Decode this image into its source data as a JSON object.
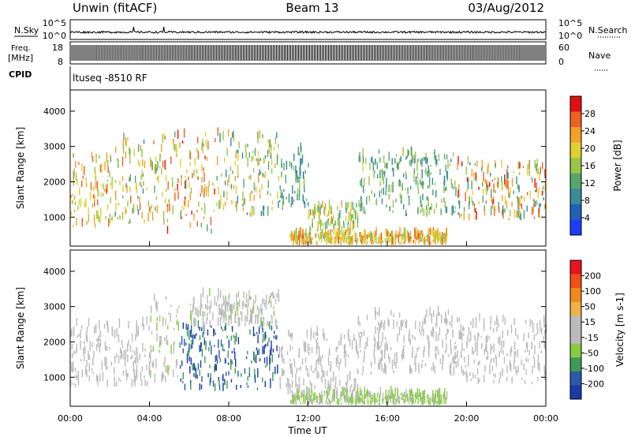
{
  "header": {
    "title_left": "Unwin (fitACF)",
    "title_center": "Beam 13",
    "title_right": "03/Aug/2012"
  },
  "strips": {
    "nsky": {
      "label": "N.Sky",
      "right_label": "N.Search",
      "left_ticks": [
        "10^5",
        "10^0"
      ],
      "right_ticks": [
        "10^5",
        "10^0"
      ]
    },
    "freq": {
      "label_line1": "Freq.",
      "label_line2": "[MHz]",
      "right_label": "Nave",
      "left_ticks": [
        "18",
        "8"
      ],
      "right_ticks": [
        "60",
        "0"
      ]
    },
    "cpid": {
      "label": "CPID",
      "value": "ltuseq -8510 RF"
    }
  },
  "time_axis": {
    "label": "Time UT",
    "ticks": [
      "00:00",
      "04:00",
      "08:00",
      "12:00",
      "16:00",
      "20:00",
      "00:00"
    ]
  },
  "chart_data": [
    {
      "type": "heatmap",
      "title": "",
      "xlabel": "Time UT",
      "ylabel": "Slant Range [km]",
      "xlim_hours": [
        0,
        24
      ],
      "ylim": [
        180,
        4600
      ],
      "y_ticks": [
        1000,
        2000,
        3000,
        4000
      ],
      "colorbar": {
        "label": "Power [dB]",
        "ticks": [
          "28",
          "24",
          "20",
          "16",
          "12",
          "8",
          "4"
        ],
        "range": [
          0,
          32
        ]
      },
      "regions": [
        {
          "t_start_h": 0.0,
          "t_end_h": 2.0,
          "r_min_km": 700,
          "r_max_km": 2700,
          "value_range": [
            14,
            28
          ]
        },
        {
          "t_start_h": 2.0,
          "t_end_h": 4.5,
          "r_min_km": 800,
          "r_max_km": 3200,
          "value_range": [
            10,
            26
          ]
        },
        {
          "t_start_h": 4.5,
          "t_end_h": 7.5,
          "r_min_km": 500,
          "r_max_km": 3300,
          "value_range": [
            12,
            30
          ]
        },
        {
          "t_start_h": 7.5,
          "t_end_h": 10.5,
          "r_min_km": 1000,
          "r_max_km": 3300,
          "value_range": [
            8,
            24
          ]
        },
        {
          "t_start_h": 10.5,
          "t_end_h": 12.0,
          "r_min_km": 1200,
          "r_max_km": 2900,
          "value_range": [
            6,
            16
          ]
        },
        {
          "t_start_h": 12.0,
          "t_end_h": 14.5,
          "r_min_km": 500,
          "r_max_km": 1300,
          "value_range": [
            10,
            24
          ]
        },
        {
          "t_start_h": 11.0,
          "t_end_h": 19.0,
          "r_min_km": 200,
          "r_max_km": 500,
          "value_range": [
            14,
            28
          ]
        },
        {
          "t_start_h": 14.5,
          "t_end_h": 19.5,
          "r_min_km": 1000,
          "r_max_km": 2800,
          "value_range": [
            8,
            18
          ]
        },
        {
          "t_start_h": 19.5,
          "t_end_h": 24.0,
          "r_min_km": 900,
          "r_max_km": 2500,
          "value_range": [
            8,
            30
          ]
        }
      ]
    },
    {
      "type": "heatmap",
      "title": "",
      "xlabel": "Time UT",
      "ylabel": "Slant Range [km]",
      "xlim_hours": [
        0,
        24
      ],
      "ylim": [
        180,
        4600
      ],
      "y_ticks": [
        1000,
        2000,
        3000,
        4000
      ],
      "colorbar": {
        "label": "Velocity [m s-1]",
        "ticks": [
          "200",
          "100",
          "50",
          "15",
          "-15",
          "-50",
          "-100",
          "-200"
        ],
        "range": [
          -250,
          250
        ]
      },
      "regions": [
        {
          "t_start_h": 0.0,
          "t_end_h": 4.0,
          "r_min_km": 700,
          "r_max_km": 2500,
          "value_range": [
            -15,
            15
          ]
        },
        {
          "t_start_h": 4.0,
          "t_end_h": 5.5,
          "r_min_km": 800,
          "r_max_km": 3200,
          "value_range": [
            -80,
            15
          ]
        },
        {
          "t_start_h": 5.5,
          "t_end_h": 10.5,
          "r_min_km": 600,
          "r_max_km": 2400,
          "value_range": [
            -250,
            -100
          ]
        },
        {
          "t_start_h": 6.0,
          "t_end_h": 10.5,
          "r_min_km": 2400,
          "r_max_km": 3300,
          "value_range": [
            -60,
            15
          ]
        },
        {
          "t_start_h": 10.5,
          "t_end_h": 14.5,
          "r_min_km": 500,
          "r_max_km": 2200,
          "value_range": [
            -15,
            15
          ]
        },
        {
          "t_start_h": 11.0,
          "t_end_h": 19.0,
          "r_min_km": 200,
          "r_max_km": 500,
          "value_range": [
            -100,
            -15
          ]
        },
        {
          "t_start_h": 14.5,
          "t_end_h": 19.5,
          "r_min_km": 1000,
          "r_max_km": 2800,
          "value_range": [
            15,
            50
          ]
        },
        {
          "t_start_h": 19.5,
          "t_end_h": 24.0,
          "r_min_km": 800,
          "r_max_km": 2600,
          "value_range": [
            -15,
            15
          ]
        }
      ]
    }
  ],
  "colors": {
    "power_scale": [
      "#1e3cff",
      "#2060b8",
      "#3a8a9a",
      "#55a66a",
      "#99c54a",
      "#e0d030",
      "#f2a02a",
      "#ee6020",
      "#e01010"
    ],
    "velocity_scale": [
      "#e8141e",
      "#ee5018",
      "#f08a1c",
      "#f0b04a",
      "#bbbbbb",
      "#bbbbbb",
      "#88cc44",
      "#3f9a58",
      "#2a5aa8",
      "#1a3aa8"
    ]
  }
}
